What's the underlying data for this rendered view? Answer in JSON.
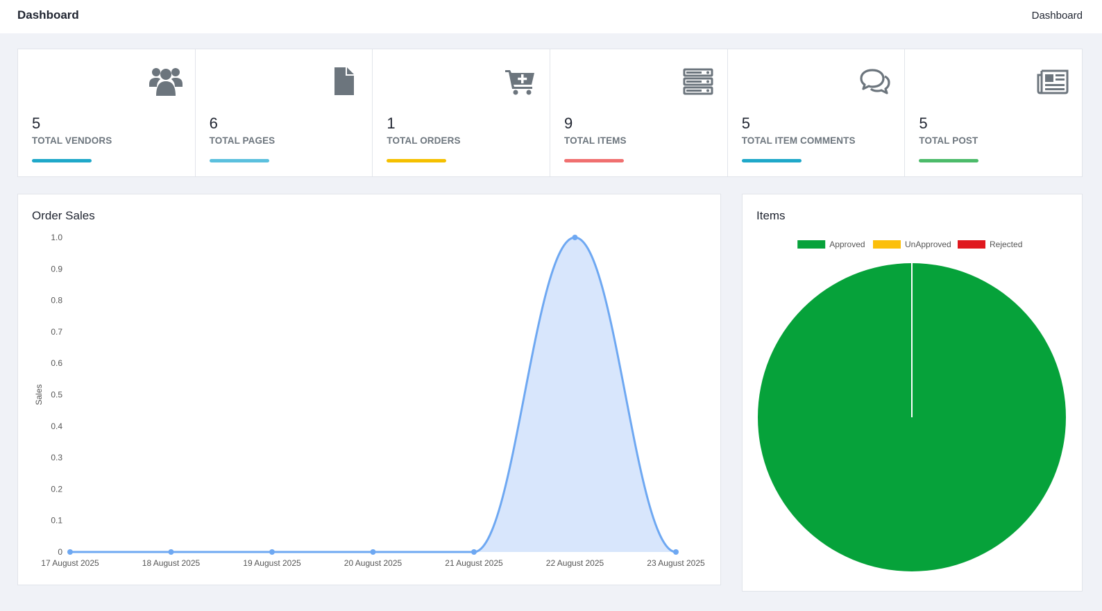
{
  "header": {
    "title": "Dashboard",
    "breadcrumb": "Dashboard"
  },
  "stats": [
    {
      "value": "5",
      "label": "TOTAL VENDORS",
      "icon": "users-icon",
      "color": "#1fa8c9"
    },
    {
      "value": "6",
      "label": "TOTAL PAGES",
      "icon": "file-icon",
      "color": "#5bc0de"
    },
    {
      "value": "1",
      "label": "TOTAL ORDERS",
      "icon": "cart-plus-icon",
      "color": "#f5c000"
    },
    {
      "value": "9",
      "label": "TOTAL ITEMS",
      "icon": "server-icon",
      "color": "#f07070"
    },
    {
      "value": "5",
      "label": "TOTAL ITEM COMMENTS",
      "icon": "comments-icon",
      "color": "#1fa8c9"
    },
    {
      "value": "5",
      "label": "TOTAL POST",
      "icon": "newspaper-icon",
      "color": "#4cbb6a"
    }
  ],
  "sales_card": {
    "title": "Order Sales"
  },
  "items_card": {
    "title": "Items"
  },
  "chart_data": [
    {
      "type": "area",
      "title": "Order Sales",
      "xlabel": "",
      "ylabel": "Sales",
      "categories": [
        "17 August 2025",
        "18 August 2025",
        "19 August 2025",
        "20 August 2025",
        "21 August 2025",
        "22 August 2025",
        "23 August 2025"
      ],
      "values": [
        0,
        0,
        0,
        0,
        0,
        1,
        0
      ],
      "ylim": [
        0,
        1
      ],
      "yticks": [
        "0",
        "0.1",
        "0.2",
        "0.3",
        "0.4",
        "0.5",
        "0.6",
        "0.7",
        "0.8",
        "0.9",
        "1.0"
      ],
      "color": "#6ea8f2",
      "fill": "#d8e6fc",
      "grid": false
    },
    {
      "type": "pie",
      "title": "Items",
      "legend_position": "top",
      "slices": [
        {
          "label": "Approved",
          "value": 9,
          "color": "#06a23a"
        },
        {
          "label": "UnApproved",
          "value": 0,
          "color": "#fcbf0a"
        },
        {
          "label": "Rejected",
          "value": 0,
          "color": "#e0181e"
        }
      ]
    }
  ]
}
